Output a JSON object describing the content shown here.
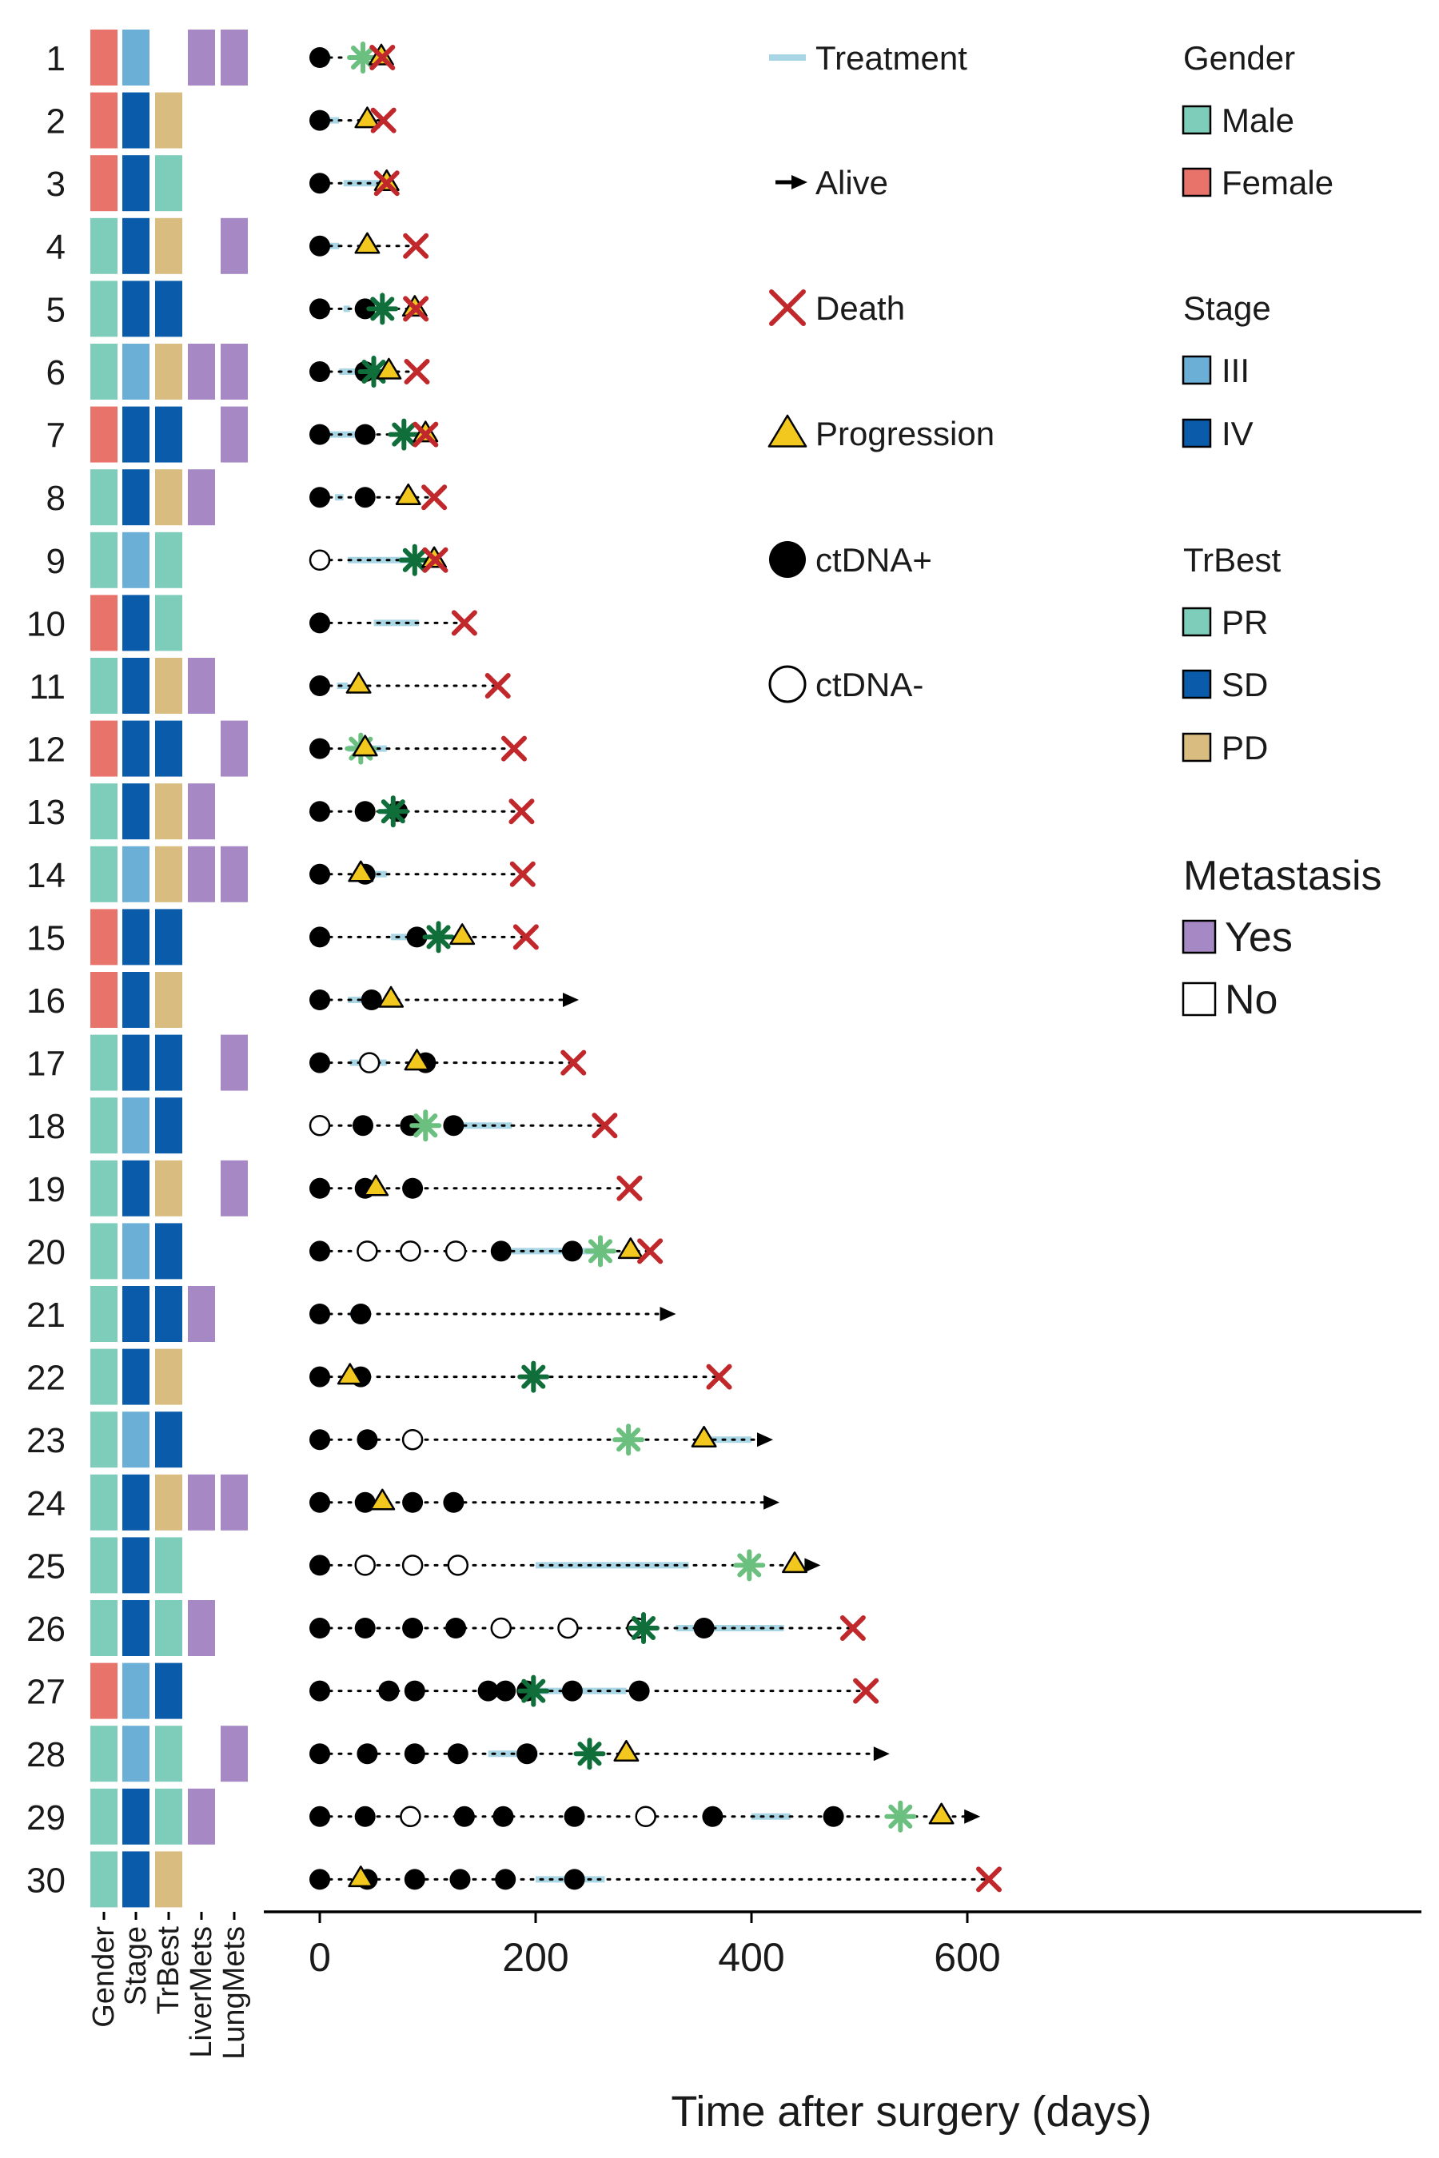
{
  "colors": {
    "male": "#7ECDBB",
    "female": "#E8736A",
    "stage_III": "#6BAED6",
    "stage_IV": "#0A5BAA",
    "tr_PR": "#7ECDBB",
    "tr_SD": "#0A5BAA",
    "tr_PD": "#D9BC80",
    "met_yes": "#A588C4",
    "treatment": "#A9D6E5",
    "death": "#C0282B",
    "progression": "#F2C81F",
    "star_dark": "#0F6E3A",
    "star_light": "#6BBF7F"
  },
  "chart_data": {
    "type": "swimmer",
    "xlabel": "Time after surgery (days)",
    "xlim": [
      0,
      650
    ],
    "xticks": [
      0,
      200,
      400,
      600
    ],
    "heatmap_columns": [
      "Gender",
      "Stage",
      "TrBest",
      "LiverMets",
      "LungMets"
    ],
    "legend": {
      "events": [
        {
          "key": "treatment",
          "label": "Treatment"
        },
        {
          "key": "alive",
          "label": "Alive"
        },
        {
          "key": "death",
          "label": "Death"
        },
        {
          "key": "progression",
          "label": "Progression"
        },
        {
          "key": "ctdna_pos",
          "label": "ctDNA+"
        },
        {
          "key": "ctdna_neg",
          "label": "ctDNA-"
        }
      ],
      "groups": [
        {
          "title": "Gender",
          "items": [
            {
              "label": "Male",
              "color": "#7ECDBB"
            },
            {
              "label": "Female",
              "color": "#E8736A"
            }
          ]
        },
        {
          "title": "Stage",
          "items": [
            {
              "label": "III",
              "color": "#6BAED6"
            },
            {
              "label": "IV",
              "color": "#0A5BAA"
            }
          ]
        },
        {
          "title": "TrBest",
          "items": [
            {
              "label": "PR",
              "color": "#7ECDBB"
            },
            {
              "label": "SD",
              "color": "#0A5BAA"
            },
            {
              "label": "PD",
              "color": "#D9BC80"
            }
          ]
        }
      ],
      "metastasis": {
        "title": "Metastasis",
        "items": [
          {
            "label": "Yes",
            "color": "#A588C4"
          },
          {
            "label": "No",
            "color": "#ffffff"
          }
        ]
      }
    },
    "patients": [
      {
        "id": "1",
        "gender": "Female",
        "stage": "III",
        "trbest": "",
        "liver": true,
        "lung": true,
        "end": 58,
        "outcome": "death",
        "treatment": [
          [
            4,
            10
          ]
        ],
        "ctdna_pos": [
          0
        ],
        "ctdna_neg": [],
        "progression": [
          57
        ],
        "star_dark": [],
        "star_light": [
          40
        ]
      },
      {
        "id": "2",
        "gender": "Female",
        "stage": "IV",
        "trbest": "PD",
        "liver": false,
        "lung": false,
        "end": 59,
        "outcome": "death",
        "treatment": [
          [
            6,
            18
          ]
        ],
        "ctdna_pos": [
          0
        ],
        "ctdna_neg": [],
        "progression": [
          44
        ],
        "star_dark": [],
        "star_light": []
      },
      {
        "id": "3",
        "gender": "Female",
        "stage": "IV",
        "trbest": "PR",
        "liver": false,
        "lung": false,
        "end": 62,
        "outcome": "death",
        "treatment": [
          [
            22,
            58
          ]
        ],
        "ctdna_pos": [
          0
        ],
        "ctdna_neg": [],
        "progression": [
          62
        ],
        "star_dark": [],
        "star_light": []
      },
      {
        "id": "4",
        "gender": "Male",
        "stage": "IV",
        "trbest": "PD",
        "liver": false,
        "lung": true,
        "end": 89,
        "outcome": "death",
        "treatment": [
          [
            6,
            18
          ]
        ],
        "ctdna_pos": [
          0
        ],
        "ctdna_neg": [],
        "progression": [
          44
        ],
        "star_dark": [],
        "star_light": []
      },
      {
        "id": "5",
        "gender": "Male",
        "stage": "IV",
        "trbest": "SD",
        "liver": false,
        "lung": false,
        "end": 89,
        "outcome": "death",
        "treatment": [
          [
            22,
            28
          ]
        ],
        "ctdna_pos": [
          0,
          42
        ],
        "ctdna_neg": [],
        "progression": [
          88
        ],
        "star_dark": [
          58
        ],
        "star_light": []
      },
      {
        "id": "6",
        "gender": "Male",
        "stage": "III",
        "trbest": "PD",
        "liver": true,
        "lung": true,
        "end": 90,
        "outcome": "death",
        "treatment": [
          [
            18,
            50
          ]
        ],
        "ctdna_pos": [
          0,
          42
        ],
        "ctdna_neg": [],
        "progression": [
          64
        ],
        "star_dark": [
          50
        ],
        "star_light": []
      },
      {
        "id": "7",
        "gender": "Female",
        "stage": "IV",
        "trbest": "SD",
        "liver": false,
        "lung": true,
        "end": 98,
        "outcome": "death",
        "treatment": [
          [
            8,
            38
          ]
        ],
        "ctdna_pos": [
          0,
          42
        ],
        "ctdna_neg": [],
        "progression": [
          98
        ],
        "star_dark": [
          78
        ],
        "star_light": []
      },
      {
        "id": "8",
        "gender": "Male",
        "stage": "IV",
        "trbest": "PD",
        "liver": true,
        "lung": false,
        "end": 106,
        "outcome": "death",
        "treatment": [
          [
            14,
            22
          ]
        ],
        "ctdna_pos": [
          0,
          42
        ],
        "ctdna_neg": [],
        "progression": [
          82
        ],
        "star_dark": [],
        "star_light": []
      },
      {
        "id": "9",
        "gender": "Male",
        "stage": "III",
        "trbest": "PR",
        "liver": false,
        "lung": false,
        "end": 107,
        "outcome": "death",
        "treatment": [
          [
            26,
            90
          ]
        ],
        "ctdna_pos": [],
        "ctdna_neg": [
          0
        ],
        "progression": [
          106
        ],
        "star_dark": [
          88
        ],
        "star_light": []
      },
      {
        "id": "10",
        "gender": "Female",
        "stage": "IV",
        "trbest": "PR",
        "liver": false,
        "lung": false,
        "end": 134,
        "outcome": "death",
        "treatment": [
          [
            50,
            92
          ]
        ],
        "ctdna_pos": [
          0
        ],
        "ctdna_neg": [],
        "progression": [],
        "star_dark": [],
        "star_light": []
      },
      {
        "id": "11",
        "gender": "Male",
        "stage": "IV",
        "trbest": "PD",
        "liver": true,
        "lung": false,
        "end": 165,
        "outcome": "death",
        "treatment": [
          [
            16,
            26
          ]
        ],
        "ctdna_pos": [
          0
        ],
        "ctdna_neg": [],
        "progression": [
          36
        ],
        "star_dark": [],
        "star_light": []
      },
      {
        "id": "12",
        "gender": "Female",
        "stage": "IV",
        "trbest": "SD",
        "liver": false,
        "lung": true,
        "end": 180,
        "outcome": "death",
        "treatment": [
          [
            26,
            62
          ]
        ],
        "ctdna_pos": [
          0
        ],
        "ctdna_neg": [],
        "progression": [
          42
        ],
        "star_dark": [],
        "star_light": [
          38
        ]
      },
      {
        "id": "13",
        "gender": "Male",
        "stage": "IV",
        "trbest": "PD",
        "liver": true,
        "lung": false,
        "end": 187,
        "outcome": "death",
        "treatment": [
          [
            60,
            70
          ]
        ],
        "ctdna_pos": [
          0,
          42,
          72
        ],
        "ctdna_neg": [],
        "progression": [],
        "star_dark": [
          68
        ],
        "star_light": []
      },
      {
        "id": "14",
        "gender": "Male",
        "stage": "III",
        "trbest": "PD",
        "liver": true,
        "lung": true,
        "end": 188,
        "outcome": "death",
        "treatment": [
          [
            38,
            62
          ]
        ],
        "ctdna_pos": [
          0,
          42
        ],
        "ctdna_neg": [],
        "progression": [
          38
        ],
        "star_dark": [],
        "star_light": []
      },
      {
        "id": "15",
        "gender": "Female",
        "stage": "IV",
        "trbest": "SD",
        "liver": false,
        "lung": false,
        "end": 191,
        "outcome": "death",
        "treatment": [
          [
            66,
            90
          ]
        ],
        "ctdna_pos": [
          0,
          90
        ],
        "ctdna_neg": [],
        "progression": [
          132
        ],
        "star_dark": [
          110
        ],
        "star_light": []
      },
      {
        "id": "16",
        "gender": "Female",
        "stage": "IV",
        "trbest": "PD",
        "liver": false,
        "lung": false,
        "end": 240,
        "outcome": "alive",
        "treatment": [
          [
            26,
            46
          ]
        ],
        "ctdna_pos": [
          0,
          48
        ],
        "ctdna_neg": [],
        "progression": [
          66
        ],
        "star_dark": [],
        "star_light": []
      },
      {
        "id": "17",
        "gender": "Male",
        "stage": "IV",
        "trbest": "SD",
        "liver": false,
        "lung": true,
        "end": 235,
        "outcome": "death",
        "treatment": [
          [
            28,
            62
          ]
        ],
        "ctdna_pos": [
          0,
          98
        ],
        "ctdna_neg": [
          46
        ],
        "progression": [
          90
        ],
        "star_dark": [],
        "star_light": []
      },
      {
        "id": "18",
        "gender": "Male",
        "stage": "III",
        "trbest": "SD",
        "liver": false,
        "lung": false,
        "end": 264,
        "outcome": "death",
        "treatment": [
          [
            120,
            178
          ]
        ],
        "ctdna_pos": [
          40,
          84,
          124
        ],
        "ctdna_neg": [
          0
        ],
        "progression": [],
        "star_dark": [],
        "star_light": [
          98
        ]
      },
      {
        "id": "19",
        "gender": "Male",
        "stage": "IV",
        "trbest": "PD",
        "liver": false,
        "lung": true,
        "end": 287,
        "outcome": "death",
        "treatment": [
          [
            40,
            58
          ]
        ],
        "ctdna_pos": [
          0,
          42,
          86
        ],
        "ctdna_neg": [],
        "progression": [
          52
        ],
        "star_dark": [],
        "star_light": []
      },
      {
        "id": "20",
        "gender": "Male",
        "stage": "III",
        "trbest": "SD",
        "liver": false,
        "lung": false,
        "end": 306,
        "outcome": "death",
        "treatment": [
          [
            178,
            264
          ]
        ],
        "ctdna_pos": [
          0,
          168,
          234
        ],
        "ctdna_neg": [
          44,
          84,
          126
        ],
        "progression": [
          288
        ],
        "star_dark": [],
        "star_light": [
          260
        ]
      },
      {
        "id": "21",
        "gender": "Male",
        "stage": "IV",
        "trbest": "SD",
        "liver": true,
        "lung": false,
        "end": 330,
        "outcome": "alive",
        "treatment": [
          [
            28,
            40
          ]
        ],
        "ctdna_pos": [
          0,
          38
        ],
        "ctdna_neg": [],
        "progression": [],
        "star_dark": [],
        "star_light": []
      },
      {
        "id": "22",
        "gender": "Male",
        "stage": "IV",
        "trbest": "PD",
        "liver": false,
        "lung": false,
        "end": 370,
        "outcome": "death",
        "treatment": [],
        "ctdna_pos": [
          0,
          38
        ],
        "ctdna_neg": [],
        "progression": [
          28
        ],
        "star_dark": [
          198
        ],
        "star_light": []
      },
      {
        "id": "23",
        "gender": "Male",
        "stage": "III",
        "trbest": "SD",
        "liver": false,
        "lung": false,
        "end": 420,
        "outcome": "alive",
        "treatment": [
          [
            358,
            400
          ]
        ],
        "ctdna_pos": [
          0,
          44
        ],
        "ctdna_neg": [
          86
        ],
        "progression": [
          356
        ],
        "star_dark": [],
        "star_light": [
          286
        ]
      },
      {
        "id": "24",
        "gender": "Male",
        "stage": "IV",
        "trbest": "PD",
        "liver": true,
        "lung": true,
        "end": 426,
        "outcome": "alive",
        "treatment": [],
        "ctdna_pos": [
          0,
          42,
          86,
          124
        ],
        "ctdna_neg": [],
        "progression": [
          58
        ],
        "star_dark": [],
        "star_light": []
      },
      {
        "id": "25",
        "gender": "Male",
        "stage": "IV",
        "trbest": "PR",
        "liver": false,
        "lung": false,
        "end": 464,
        "outcome": "alive",
        "treatment": [
          [
            200,
            342
          ]
        ],
        "ctdna_pos": [
          0
        ],
        "ctdna_neg": [
          42,
          86,
          128
        ],
        "progression": [
          440
        ],
        "star_dark": [],
        "star_light": [
          398
        ]
      },
      {
        "id": "26",
        "gender": "Male",
        "stage": "IV",
        "trbest": "PR",
        "liver": true,
        "lung": false,
        "end": 494,
        "outcome": "death",
        "treatment": [
          [
            330,
            430
          ]
        ],
        "ctdna_pos": [
          0,
          42,
          86,
          126,
          356
        ],
        "ctdna_neg": [
          168,
          230,
          294
        ],
        "progression": [],
        "star_dark": [
          300
        ],
        "star_light": []
      },
      {
        "id": "27",
        "gender": "Female",
        "stage": "III",
        "trbest": "SD",
        "liver": false,
        "lung": false,
        "end": 506,
        "outcome": "death",
        "treatment": [
          [
            200,
            284
          ]
        ],
        "ctdna_pos": [
          0,
          64,
          88,
          156,
          172,
          192,
          234,
          296
        ],
        "ctdna_neg": [],
        "progression": [],
        "star_dark": [
          198
        ],
        "star_light": []
      },
      {
        "id": "28",
        "gender": "Male",
        "stage": "III",
        "trbest": "PR",
        "liver": false,
        "lung": true,
        "end": 528,
        "outcome": "alive",
        "treatment": [
          [
            156,
            202
          ]
        ],
        "ctdna_pos": [
          0,
          44,
          88,
          128,
          192
        ],
        "ctdna_neg": [],
        "progression": [
          284
        ],
        "star_dark": [
          250
        ],
        "star_light": []
      },
      {
        "id": "29",
        "gender": "Male",
        "stage": "IV",
        "trbest": "PR",
        "liver": true,
        "lung": false,
        "end": 612,
        "outcome": "alive",
        "treatment": [
          [
            400,
            436
          ]
        ],
        "ctdna_pos": [
          0,
          42,
          134,
          170,
          236,
          364,
          476
        ],
        "ctdna_neg": [
          84,
          302
        ],
        "progression": [
          576
        ],
        "star_dark": [],
        "star_light": [
          538
        ]
      },
      {
        "id": "30",
        "gender": "Male",
        "stage": "IV",
        "trbest": "PD",
        "liver": false,
        "lung": false,
        "end": 620,
        "outcome": "death",
        "treatment": [
          [
            200,
            264
          ]
        ],
        "ctdna_pos": [
          0,
          44,
          88,
          130,
          172,
          236
        ],
        "ctdna_neg": [],
        "progression": [
          38
        ],
        "star_dark": [],
        "star_light": []
      }
    ]
  }
}
